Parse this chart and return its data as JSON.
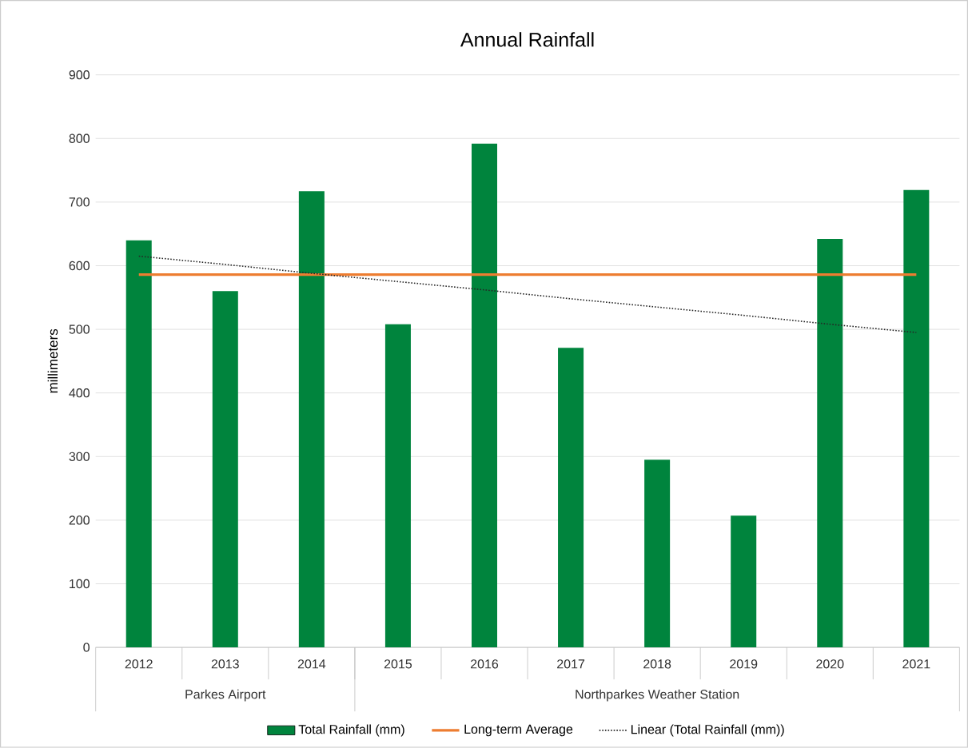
{
  "chart_data": {
    "type": "bar",
    "title": "Annual Rainfall",
    "ylabel": "millimeters",
    "categories": [
      "2012",
      "2013",
      "2014",
      "2015",
      "2016",
      "2017",
      "2018",
      "2019",
      "2020",
      "2021"
    ],
    "series": [
      {
        "name": "Total Rainfall (mm)",
        "color": "#00843d",
        "values": [
          640,
          560,
          717,
          508,
          792,
          471,
          295,
          207,
          642,
          719
        ]
      },
      {
        "name": "Long-term Average",
        "type": "line",
        "color": "#ed7d31",
        "line_style": "solid",
        "values": [
          586,
          586,
          586,
          586,
          586,
          586,
          586,
          586,
          586,
          586
        ]
      },
      {
        "name": "Linear (Total Rainfall (mm))",
        "type": "line",
        "color": "#262626",
        "line_style": "dotted",
        "values": [
          615,
          602,
          588,
          575,
          562,
          548,
          535,
          522,
          508,
          495
        ]
      }
    ],
    "ylim": [
      0,
      900
    ],
    "yticks": [
      0,
      100,
      200,
      300,
      400,
      500,
      600,
      700,
      800,
      900
    ],
    "grid": "y",
    "legend": "bottom",
    "marker": "none",
    "annotations": [
      "Parkes Airport",
      "Northparkes Weather Station"
    ]
  }
}
